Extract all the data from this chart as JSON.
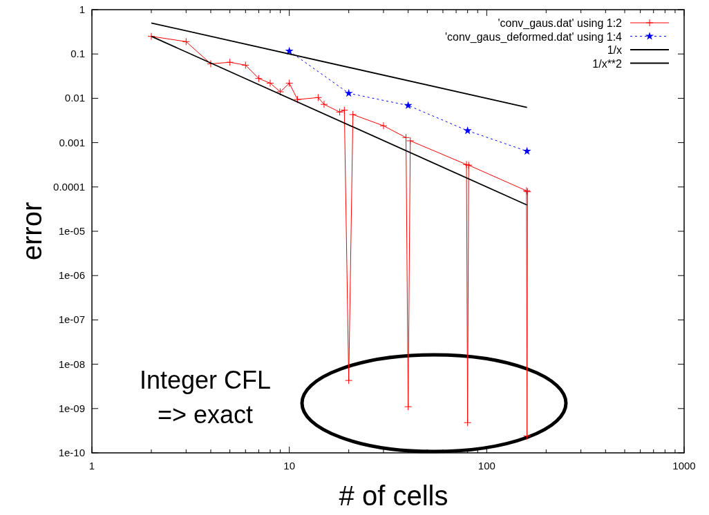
{
  "chart_data": {
    "type": "line",
    "xlabel": "# of cells",
    "ylabel": "error",
    "log": "xy",
    "legend": "top right",
    "grid": false,
    "xlim": [
      1,
      1000
    ],
    "ylim": [
      1e-10,
      1
    ],
    "xticks": [
      1,
      {
        "value": 2,
        "label": null
      },
      {
        "value": 3,
        "label": null
      },
      {
        "value": 4,
        "label": null
      },
      {
        "value": 5,
        "label": null
      },
      {
        "value": 6,
        "label": null
      },
      {
        "value": 7,
        "label": null
      },
      {
        "value": 8,
        "label": null
      },
      {
        "value": 9,
        "label": null
      },
      10,
      {
        "value": 20,
        "label": null
      },
      {
        "value": 30,
        "label": null
      },
      {
        "value": 40,
        "label": null
      },
      {
        "value": 50,
        "label": null
      },
      {
        "value": 60,
        "label": null
      },
      {
        "value": 70,
        "label": null
      },
      {
        "value": 80,
        "label": null
      },
      {
        "value": 90,
        "label": null
      },
      100,
      {
        "value": 200,
        "label": null
      },
      {
        "value": 300,
        "label": null
      },
      {
        "value": 400,
        "label": null
      },
      {
        "value": 500,
        "label": null
      },
      {
        "value": 600,
        "label": null
      },
      {
        "value": 700,
        "label": null
      },
      {
        "value": 800,
        "label": null
      },
      {
        "value": 900,
        "label": null
      },
      1000
    ],
    "yticks": [
      {
        "value": 1e-10,
        "label": "1e-10"
      },
      {
        "value": 1e-09,
        "label": "1e-09"
      },
      {
        "value": 1e-08,
        "label": "1e-08"
      },
      {
        "value": 1e-07,
        "label": "1e-07"
      },
      {
        "value": 1e-06,
        "label": "1e-06"
      },
      {
        "value": 1e-05,
        "label": "1e-05"
      },
      {
        "value": 0.0001,
        "label": "0.0001"
      },
      0.001,
      0.01,
      0.1,
      1
    ],
    "series": [
      {
        "name": "'conv_gaus.dat' using 1:2",
        "color": "#ff0000",
        "marker": "cross",
        "line_style": "solid",
        "x": [
          2,
          3,
          4,
          5,
          6,
          7,
          8,
          9,
          10,
          11,
          14,
          15,
          18,
          19,
          20,
          21,
          30,
          39,
          40,
          41,
          79,
          80,
          81,
          159,
          160,
          161
        ],
        "values": [
          0.25,
          0.19,
          0.06,
          0.065,
          0.056,
          0.028,
          0.022,
          0.014,
          0.022,
          0.0094,
          0.0104,
          0.0073,
          0.0049,
          0.0054,
          4.3e-09,
          0.0043,
          0.0024,
          0.0013,
          1.1e-09,
          0.0011,
          0.00032,
          4.8e-10,
          0.00031,
          8.2e-05,
          2.4e-10,
          7.8e-05
        ]
      },
      {
        "name": "'conv_gaus_deformed.dat' using 1:4",
        "color": "#0000ff",
        "marker": "star",
        "line_style": "dashed",
        "x": [
          10,
          20,
          40,
          80,
          160
        ],
        "values": [
          0.116,
          0.013,
          0.0069,
          0.00186,
          0.00064
        ]
      },
      {
        "name": "1/x",
        "color": "#000000",
        "marker": "none",
        "line_style": "solid",
        "x": [
          2,
          160
        ],
        "values": [
          0.5,
          0.00625
        ]
      },
      {
        "name": "1/x**2",
        "color": "#000000",
        "marker": "none",
        "line_style": "solid",
        "x": [
          2,
          160
        ],
        "values": [
          0.25,
          3.90625e-05
        ]
      }
    ],
    "annotations": [
      "Integer CFL\n=> exact"
    ]
  }
}
